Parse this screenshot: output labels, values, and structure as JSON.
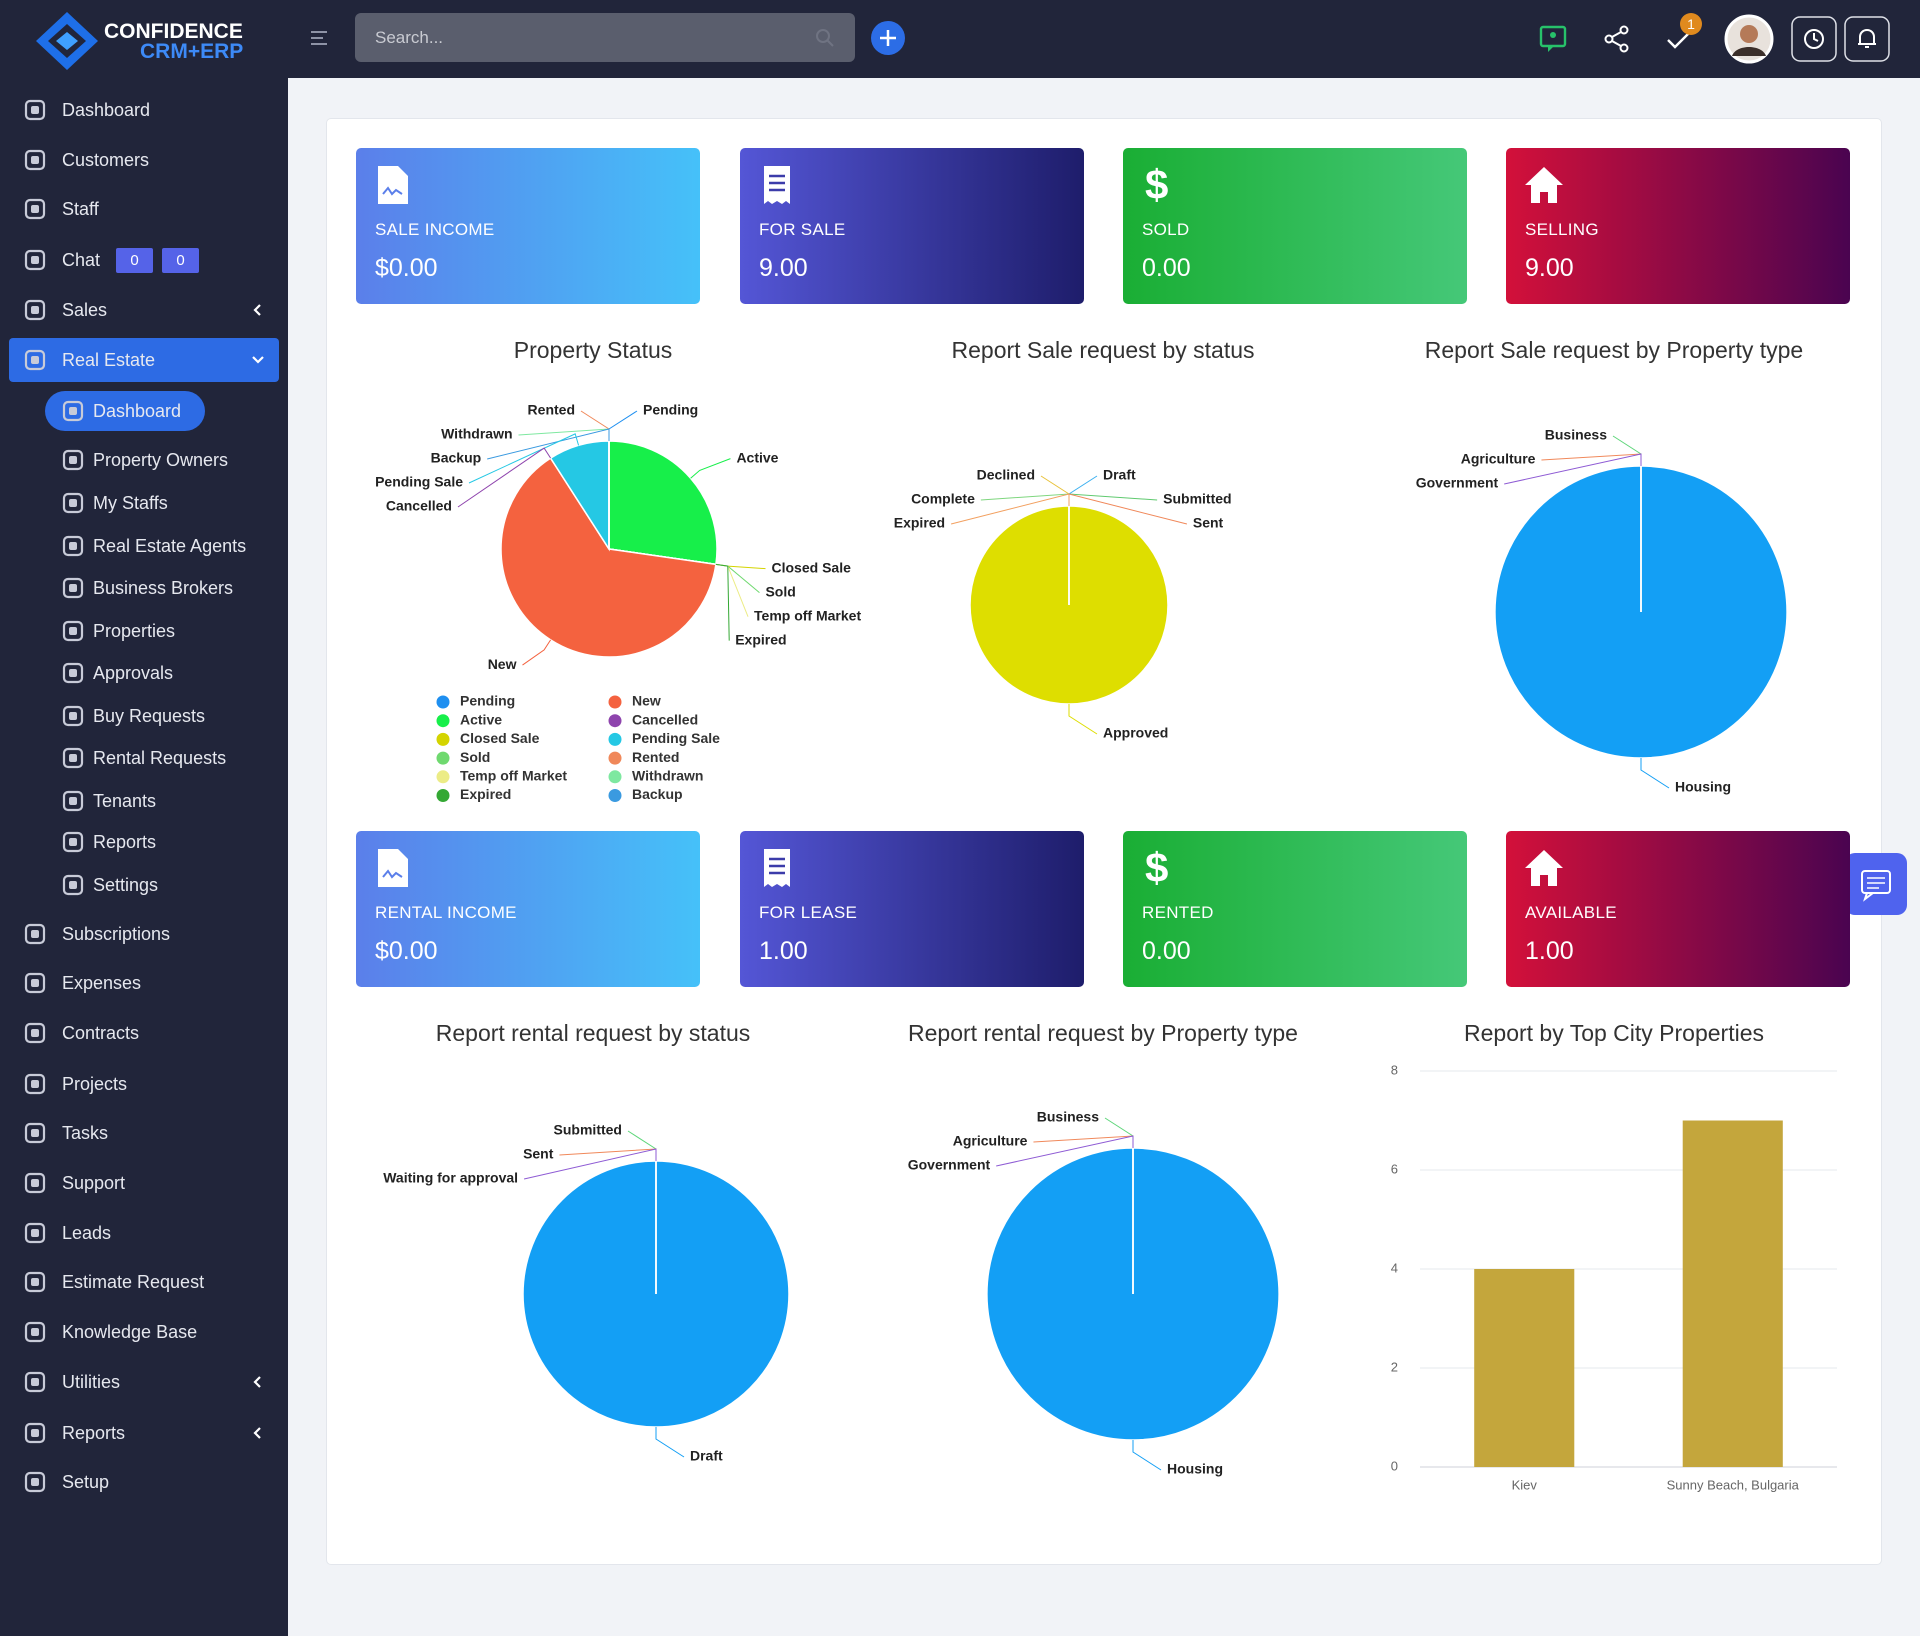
{
  "brand": {
    "name": "CONFIDENCE",
    "sub": "CRM+ERP"
  },
  "search_placeholder": "Search...",
  "task_badge": "1",
  "sidebar": {
    "menu": [
      "Dashboard",
      "Customers",
      "Staff",
      "Chat",
      "Sales",
      "Real Estate"
    ],
    "chat_badges": [
      "0",
      "0"
    ],
    "real_estate_menu": [
      "Dashboard",
      "Property Owners",
      "My Staffs",
      "Real Estate Agents",
      "Business Brokers",
      "Properties",
      "Approvals",
      "Buy Requests",
      "Rental Requests",
      "Tenants",
      "Reports",
      "Settings"
    ],
    "menu_more": [
      "Subscriptions",
      "Expenses",
      "Contracts",
      "Projects",
      "Tasks",
      "Support",
      "Leads",
      "Estimate Request",
      "Knowledge Base",
      "Utilities",
      "Reports",
      "Setup"
    ]
  },
  "cards": [
    {
      "label": "SALE INCOME",
      "value": "$0.00"
    },
    {
      "label": "FOR SALE",
      "value": "9.00"
    },
    {
      "label": "SOLD",
      "value": "0.00"
    },
    {
      "label": "SELLING",
      "value": "9.00"
    },
    {
      "label": "RENTAL INCOME",
      "value": "$0.00"
    },
    {
      "label": "FOR LEASE",
      "value": "1.00"
    },
    {
      "label": "RENTED",
      "value": "0.00"
    },
    {
      "label": "AVAILABLE",
      "value": "1.00"
    }
  ],
  "chart_data": [
    {
      "type": "pie",
      "title": "Property Status",
      "legend": true,
      "categories": [
        "Pending",
        "Active",
        "Closed Sale",
        "Sold",
        "Temp off Market",
        "Expired",
        "New",
        "Cancelled",
        "Pending Sale",
        "Rented",
        "Withdrawn",
        "Backup"
      ],
      "values": [
        0,
        3,
        0,
        0,
        0,
        0,
        7,
        0,
        1,
        0,
        0,
        0
      ],
      "colors": [
        "#1e8ff0",
        "#17ef4a",
        "#d4d400",
        "#6fd96f",
        "#ecec86",
        "#34a834",
        "#f4623f",
        "#8e44ad",
        "#25c8e4",
        "#f0885a",
        "#7ee8a0",
        "#3a9ae0"
      ]
    },
    {
      "type": "pie",
      "title": "Report Sale request by status",
      "legend": false,
      "categories": [
        "Draft",
        "Submitted",
        "Sent",
        "Approved",
        "Declined",
        "Complete",
        "Expired"
      ],
      "values": [
        0,
        0,
        0,
        1,
        0,
        0,
        0
      ],
      "colors": [
        "#3bb0f0",
        "#5ec96e",
        "#f0885a",
        "#dede00",
        "#e8c23a",
        "#7ed67e",
        "#f2a060"
      ]
    },
    {
      "type": "pie",
      "title": "Report Sale request by Property type",
      "legend": false,
      "categories": [
        "Housing",
        "Business",
        "Agriculture",
        "Government"
      ],
      "values": [
        1,
        0,
        0,
        0
      ],
      "colors": [
        "#139ff5",
        "#5ed67a",
        "#f0885a",
        "#8e5bd4"
      ]
    },
    {
      "type": "pie",
      "title": "Report rental request by status",
      "legend": false,
      "categories": [
        "Draft",
        "Submitted",
        "Sent",
        "Waiting for approval"
      ],
      "values": [
        1,
        0,
        0,
        0
      ],
      "colors": [
        "#139ff5",
        "#5ed67a",
        "#f0885a",
        "#8e5bd4"
      ]
    },
    {
      "type": "pie",
      "title": "Report rental request by Property type",
      "legend": false,
      "categories": [
        "Housing",
        "Business",
        "Agriculture",
        "Government"
      ],
      "values": [
        1,
        0,
        0,
        0
      ],
      "colors": [
        "#139ff5",
        "#5ed67a",
        "#f0885a",
        "#8e5bd4"
      ]
    },
    {
      "type": "bar",
      "title": "Report by Top City Properties",
      "categories": [
        "Kiev",
        "Sunny Beach, Bulgaria"
      ],
      "values": [
        4,
        7
      ],
      "color": "#c4a63c",
      "ylim": [
        0,
        8
      ],
      "yticks": [
        0,
        2,
        4,
        6,
        8
      ],
      "grid": true
    }
  ]
}
